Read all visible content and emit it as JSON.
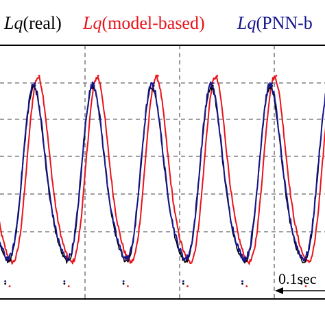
{
  "legend": {
    "items": [
      {
        "prefix": "Lq",
        "suffix": "(real)",
        "color": "#000000"
      },
      {
        "prefix": "Lq",
        "suffix": "(model-based)",
        "color": "#e8131a"
      },
      {
        "prefix": "Lq",
        "suffix": "(PNN-b",
        "color": "#14148c"
      }
    ]
  },
  "scale_bar": {
    "label": "0.1sec"
  },
  "chart_data": {
    "type": "line",
    "title": "",
    "xlabel": "",
    "ylabel": "",
    "grid": true,
    "legend_position": "top",
    "x_unit": "sec",
    "xlim": [
      0,
      0.55
    ],
    "ylim": [
      0,
      1
    ],
    "x_divisions": 4,
    "y_divisions": 6,
    "period": 0.096,
    "series": [
      {
        "name": "Lq(real)",
        "color": "#000000",
        "peaks_x": [
          0.061,
          0.157,
          0.254,
          0.35,
          0.446,
          0.542
        ],
        "troughs_x": [
          0.013,
          0.109,
          0.205,
          0.302,
          0.398,
          0.494
        ],
        "peak_y": 0.84,
        "trough_y": 0.06
      },
      {
        "name": "Lq(model-based)",
        "color": "#e8131a",
        "peaks_x": [
          0.068,
          0.164,
          0.261,
          0.357,
          0.453,
          0.549
        ],
        "troughs_x": [
          0.02,
          0.116,
          0.212,
          0.309,
          0.405,
          0.501
        ],
        "peak_y": 0.88,
        "trough_y": 0.05
      },
      {
        "name": "Lq(PNN-based)",
        "color": "#14148c",
        "peaks_x": [
          0.061,
          0.157,
          0.254,
          0.35,
          0.446,
          0.542
        ],
        "troughs_x": [
          0.013,
          0.109,
          0.205,
          0.302,
          0.398,
          0.494
        ],
        "peak_y": 0.85,
        "trough_y": 0.07
      }
    ]
  }
}
